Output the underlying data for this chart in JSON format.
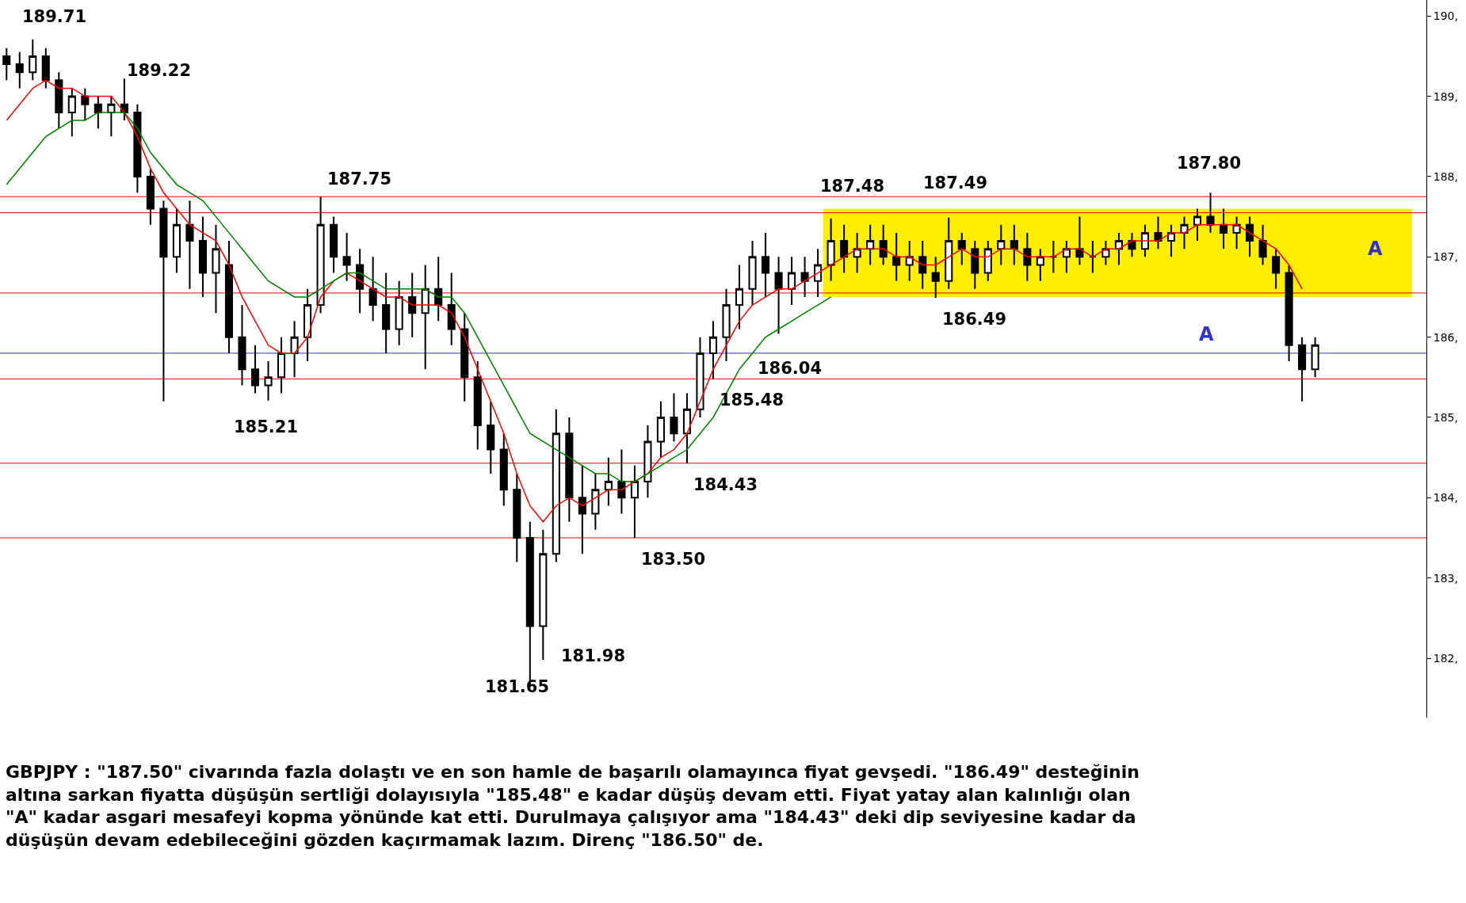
{
  "chart_data": {
    "type": "candlestick",
    "categories": [
      null,
      null,
      null,
      null,
      null,
      null,
      null,
      null,
      null,
      null,
      null,
      null,
      null,
      null,
      null,
      null,
      null,
      null,
      null,
      null,
      null,
      null,
      null,
      null,
      null,
      null,
      null,
      null,
      null,
      null,
      null,
      null,
      null,
      null,
      null,
      null,
      null,
      null,
      null,
      null,
      null,
      null,
      null,
      null,
      null,
      null,
      null,
      null,
      null,
      null,
      null,
      null,
      null,
      null,
      null,
      null,
      null,
      null,
      null,
      null,
      null,
      null,
      null,
      null,
      null,
      null,
      null,
      null,
      null,
      null,
      null,
      null,
      null,
      null,
      null,
      null,
      null,
      null,
      null,
      null,
      null,
      null,
      null,
      null,
      null,
      null,
      null,
      null,
      null,
      null,
      null,
      null,
      null,
      null,
      null,
      null,
      null,
      null,
      null,
      null,
      null
    ],
    "ylim": [
      181.26,
      190.2
    ],
    "yticks": [
      {
        "value": 182,
        "label": "182,"
      },
      {
        "value": 183,
        "label": "183,"
      },
      {
        "value": 184,
        "label": "184,"
      },
      {
        "value": 185,
        "label": "185,"
      },
      {
        "value": 186,
        "label": "186,"
      },
      {
        "value": 187,
        "label": "187,"
      },
      {
        "value": 188,
        "label": "188,"
      },
      {
        "value": 189,
        "label": "189,"
      },
      {
        "value": 190,
        "label": "190,"
      }
    ],
    "tick_labels": "y",
    "grid": false,
    "series": [
      {
        "color": "#000000",
        "ohlc": [
          [
            189.5,
            189.6,
            189.2,
            189.4
          ],
          [
            189.4,
            189.55,
            189.1,
            189.3
          ],
          [
            189.3,
            189.71,
            189.2,
            189.5
          ],
          [
            189.5,
            189.6,
            189.1,
            189.2
          ],
          [
            189.2,
            189.3,
            188.6,
            188.8
          ],
          [
            188.8,
            189.1,
            188.5,
            189.0
          ],
          [
            189.0,
            189.1,
            188.7,
            188.9
          ],
          [
            188.9,
            189.0,
            188.6,
            188.8
          ],
          [
            188.8,
            189.0,
            188.5,
            188.9
          ],
          [
            188.9,
            189.22,
            188.7,
            188.8
          ],
          [
            188.8,
            188.9,
            187.8,
            188.0
          ],
          [
            188.0,
            188.1,
            187.4,
            187.6
          ],
          [
            187.6,
            187.7,
            185.2,
            187.0
          ],
          [
            187.0,
            187.6,
            186.8,
            187.4
          ],
          [
            187.4,
            187.7,
            186.6,
            187.2
          ],
          [
            187.2,
            187.5,
            186.5,
            186.8
          ],
          [
            186.8,
            187.4,
            186.3,
            187.1
          ],
          [
            186.9,
            187.2,
            185.8,
            186.0
          ],
          [
            186.0,
            186.4,
            185.4,
            185.6
          ],
          [
            185.6,
            185.9,
            185.3,
            185.4
          ],
          [
            185.4,
            185.7,
            185.21,
            185.5
          ],
          [
            185.5,
            186.0,
            185.3,
            185.8
          ],
          [
            185.8,
            186.2,
            185.5,
            186.0
          ],
          [
            186.0,
            186.6,
            185.7,
            186.4
          ],
          [
            186.4,
            187.75,
            186.3,
            187.4
          ],
          [
            187.4,
            187.5,
            186.8,
            187.0
          ],
          [
            187.0,
            187.3,
            186.7,
            186.9
          ],
          [
            186.9,
            187.1,
            186.3,
            186.6
          ],
          [
            186.6,
            187.0,
            186.2,
            186.4
          ],
          [
            186.4,
            186.8,
            185.8,
            186.1
          ],
          [
            186.1,
            186.7,
            185.9,
            186.5
          ],
          [
            186.5,
            186.8,
            186.0,
            186.3
          ],
          [
            186.3,
            186.9,
            185.6,
            186.6
          ],
          [
            186.6,
            187.0,
            186.2,
            186.4
          ],
          [
            186.4,
            186.8,
            185.9,
            186.1
          ],
          [
            186.1,
            186.3,
            185.2,
            185.5
          ],
          [
            185.5,
            185.7,
            184.6,
            184.9
          ],
          [
            184.9,
            185.2,
            184.3,
            184.6
          ],
          [
            184.6,
            184.8,
            183.9,
            184.1
          ],
          [
            184.1,
            184.3,
            183.2,
            183.5
          ],
          [
            183.5,
            183.7,
            181.65,
            182.4
          ],
          [
            182.4,
            183.6,
            181.98,
            183.3
          ],
          [
            183.3,
            185.1,
            183.2,
            184.8
          ],
          [
            184.8,
            185.0,
            183.7,
            184.0
          ],
          [
            184.0,
            184.4,
            183.3,
            183.8
          ],
          [
            183.8,
            184.3,
            183.6,
            184.1
          ],
          [
            184.1,
            184.5,
            183.9,
            184.2
          ],
          [
            184.2,
            184.6,
            183.8,
            184.0
          ],
          [
            184.0,
            184.4,
            183.5,
            184.2
          ],
          [
            184.2,
            184.9,
            184.0,
            184.7
          ],
          [
            184.7,
            185.2,
            184.5,
            185.0
          ],
          [
            185.0,
            185.3,
            184.7,
            184.8
          ],
          [
            184.8,
            185.3,
            184.43,
            185.1
          ],
          [
            185.1,
            186.0,
            185.0,
            185.8
          ],
          [
            185.8,
            186.2,
            185.48,
            186.0
          ],
          [
            186.0,
            186.6,
            185.7,
            186.4
          ],
          [
            186.4,
            186.9,
            186.1,
            186.6
          ],
          [
            186.6,
            187.2,
            186.4,
            187.0
          ],
          [
            187.0,
            187.3,
            186.5,
            186.8
          ],
          [
            186.8,
            187.0,
            186.04,
            186.6
          ],
          [
            186.6,
            187.0,
            186.4,
            186.8
          ],
          [
            186.8,
            187.0,
            186.5,
            186.7
          ],
          [
            186.7,
            187.1,
            186.5,
            186.9
          ],
          [
            186.9,
            187.48,
            186.7,
            187.2
          ],
          [
            187.2,
            187.4,
            186.8,
            187.0
          ],
          [
            187.0,
            187.3,
            186.8,
            187.1
          ],
          [
            187.1,
            187.4,
            186.9,
            187.2
          ],
          [
            187.2,
            187.4,
            186.9,
            187.0
          ],
          [
            187.0,
            187.3,
            186.7,
            186.9
          ],
          [
            186.9,
            187.2,
            186.7,
            187.0
          ],
          [
            187.0,
            187.2,
            186.6,
            186.8
          ],
          [
            186.8,
            187.0,
            186.49,
            186.7
          ],
          [
            186.7,
            187.49,
            186.6,
            187.2
          ],
          [
            187.2,
            187.3,
            186.9,
            187.1
          ],
          [
            187.1,
            187.2,
            186.6,
            186.8
          ],
          [
            186.8,
            187.2,
            186.7,
            187.1
          ],
          [
            187.1,
            187.4,
            186.9,
            187.2
          ],
          [
            187.2,
            187.4,
            186.9,
            187.1
          ],
          [
            187.1,
            187.3,
            186.7,
            186.9
          ],
          [
            186.9,
            187.1,
            186.7,
            187.0
          ],
          [
            187.0,
            187.2,
            186.8,
            187.0
          ],
          [
            187.0,
            187.2,
            186.8,
            187.1
          ],
          [
            187.1,
            187.5,
            186.9,
            187.0
          ],
          [
            187.0,
            187.2,
            186.8,
            187.0
          ],
          [
            187.0,
            187.2,
            186.9,
            187.1
          ],
          [
            187.1,
            187.3,
            186.9,
            187.2
          ],
          [
            187.2,
            187.3,
            187.0,
            187.1
          ],
          [
            187.1,
            187.4,
            187.0,
            187.3
          ],
          [
            187.3,
            187.5,
            187.1,
            187.2
          ],
          [
            187.2,
            187.4,
            187.0,
            187.3
          ],
          [
            187.3,
            187.5,
            187.1,
            187.4
          ],
          [
            187.4,
            187.6,
            187.2,
            187.5
          ],
          [
            187.5,
            187.8,
            187.3,
            187.4
          ],
          [
            187.4,
            187.6,
            187.1,
            187.3
          ],
          [
            187.3,
            187.5,
            187.1,
            187.4
          ],
          [
            187.4,
            187.5,
            187.0,
            187.2
          ],
          [
            187.2,
            187.4,
            186.9,
            187.0
          ],
          [
            187.0,
            187.1,
            186.6,
            186.8
          ],
          [
            186.8,
            186.9,
            185.7,
            185.9
          ],
          [
            185.9,
            186.0,
            185.2,
            185.6
          ],
          [
            185.6,
            186.0,
            185.5,
            185.9
          ]
        ]
      },
      {
        "type": "line",
        "color": "#ff0000",
        "values": [
          188.7,
          188.9,
          189.1,
          189.2,
          189.1,
          189.1,
          189.0,
          189.0,
          189.0,
          188.8,
          188.5,
          188.1,
          187.8,
          187.6,
          187.4,
          187.3,
          187.2,
          186.9,
          186.5,
          186.2,
          185.9,
          185.8,
          185.8,
          186.0,
          186.5,
          186.7,
          186.8,
          186.7,
          186.6,
          186.5,
          186.5,
          186.4,
          186.4,
          186.4,
          186.3,
          186.0,
          185.6,
          185.2,
          184.8,
          184.3,
          183.9,
          183.7,
          183.9,
          184.0,
          183.9,
          184.0,
          184.1,
          184.1,
          184.2,
          184.3,
          184.5,
          184.6,
          184.8,
          185.2,
          185.6,
          185.9,
          186.2,
          186.4,
          186.5,
          186.6,
          186.6,
          186.7,
          186.8,
          186.9,
          187.0,
          187.1,
          187.1,
          187.1,
          187.0,
          187.0,
          186.9,
          186.9,
          187.0,
          187.1,
          187.0,
          187.0,
          187.1,
          187.1,
          187.0,
          187.0,
          187.0,
          187.1,
          187.1,
          187.0,
          187.1,
          187.1,
          187.2,
          187.2,
          187.2,
          187.3,
          187.3,
          187.4,
          187.4,
          187.4,
          187.4,
          187.3,
          187.2,
          187.1,
          186.9,
          186.6,
          null
        ]
      },
      {
        "type": "line",
        "color": "#008000",
        "values": [
          187.9,
          188.1,
          188.3,
          188.5,
          188.6,
          188.7,
          188.7,
          188.8,
          188.8,
          188.8,
          188.6,
          188.3,
          188.1,
          187.9,
          187.8,
          187.7,
          187.5,
          187.3,
          187.1,
          186.9,
          186.7,
          186.6,
          186.5,
          186.5,
          186.6,
          186.7,
          186.8,
          186.8,
          186.7,
          186.6,
          186.6,
          186.6,
          186.6,
          186.5,
          186.5,
          186.3,
          186.0,
          185.7,
          185.4,
          185.1,
          184.8,
          184.7,
          184.6,
          184.5,
          184.4,
          184.3,
          184.3,
          184.2,
          184.2,
          184.3,
          184.4,
          184.5,
          184.6,
          184.8,
          185.0,
          185.3,
          185.6,
          185.8,
          186.0,
          186.1,
          186.2,
          186.3,
          186.4,
          186.5,
          null,
          null,
          null,
          null,
          null,
          null,
          null,
          null,
          null,
          null,
          null,
          null,
          null,
          null,
          null,
          null,
          null,
          null,
          null,
          null,
          null,
          null,
          null,
          null,
          null,
          null,
          null,
          null,
          null,
          null,
          null,
          null,
          null,
          null,
          null,
          null,
          null
        ]
      }
    ],
    "ref_lines": [
      {
        "axis": "y",
        "value": 187.75,
        "color": "#ff0000"
      },
      {
        "axis": "y",
        "value": 187.55,
        "color": "#ff0000"
      },
      {
        "axis": "y",
        "value": 186.55,
        "color": "#ff0000"
      },
      {
        "axis": "y",
        "value": 185.48,
        "color": "#ff0000"
      },
      {
        "axis": "y",
        "value": 184.43,
        "color": "#ff0000"
      },
      {
        "axis": "y",
        "value": 183.5,
        "color": "#ff0000"
      },
      {
        "axis": "y",
        "value": 185.8,
        "color": "#3333cc"
      }
    ],
    "bands": [
      {
        "axis": "y",
        "from": 186.5,
        "to": 187.6,
        "color": "#ffee00"
      }
    ],
    "annotations": [
      "189.71",
      "189.22",
      {
        "text": "187.75",
        "y": 187.75
      },
      "185.21",
      "181.65",
      "181.98",
      {
        "text": "183.50",
        "y": 183.5
      },
      {
        "text": "184.43",
        "y": 184.43
      },
      {
        "text": "185.48",
        "y": 185.48
      },
      "186.04",
      "187.48",
      "187.49",
      {
        "text": "186.49",
        "y": 186.49
      },
      "187.80",
      "A",
      "A",
      "GBPJPY : \"187.50\" civarında fazla dolaştı ve en son hamle de başarılı olamayınca fiyat gevşedi. \"186.49\" desteğinin altına sarkan fiyatta düşüşün sertliği dolayısıyla \"185.48\" e kadar düşüş devam etti. Fiyat yatay alan kalınlığı olan \"A\" kadar asgari mesafeyi kopma yönünde kat etti. Durulmaya çalışıyor ama \"184.43\" deki dip seviyesine kadar da düşüşün devam edebileceğini gözden kaçırmamak lazım. Direnç \"186.50\" de."
    ]
  }
}
